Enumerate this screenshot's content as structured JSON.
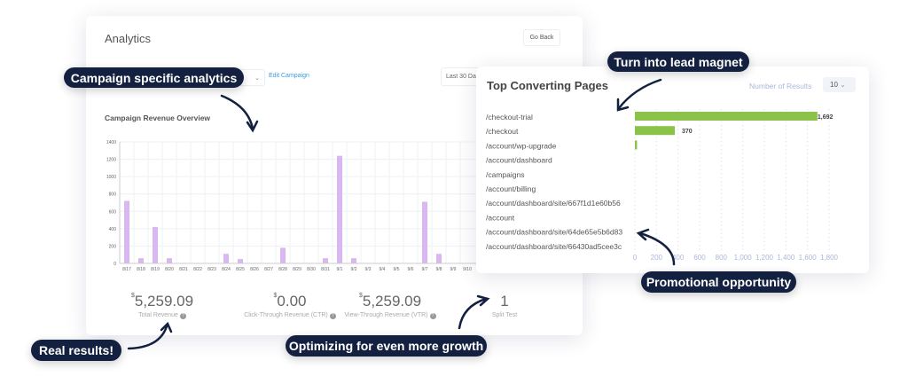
{
  "left_panel": {
    "title": "Analytics",
    "go_back": "Go Back",
    "edit_campaign": "Edit Campaign",
    "date_range": "Last 30 Da",
    "chart_title": "Campaign Revenue Overview",
    "stats": [
      {
        "currency": "$",
        "value": "5,259.09",
        "label": "Total Revenue",
        "help": true
      },
      {
        "currency": "$",
        "value": "0.00",
        "label": "Click-Through Revenue (CTR)",
        "help": true
      },
      {
        "currency": "$",
        "value": "5,259.09",
        "label": "View-Through Revenue (VTR)",
        "help": true
      },
      {
        "currency": "",
        "value": "1",
        "label": "Split Test",
        "help": false
      }
    ]
  },
  "right_panel": {
    "title": "Top Converting Pages",
    "results_label": "Number of Results",
    "results_value": "10"
  },
  "callouts": {
    "campaign": "Campaign specific analytics",
    "lead": "Turn into lead magnet",
    "promo": "Promotional opportunity",
    "results": "Real results!",
    "optimizing": "Optimizing for even more growth"
  },
  "colors": {
    "bar_revenue": "#d9b8f2",
    "bar_pages": "#8bc34a",
    "callout": "#13203f",
    "link": "#3a9be0"
  },
  "chart_data": [
    {
      "type": "bar",
      "title": "Campaign Revenue Overview",
      "categories": [
        "8/17",
        "8/18",
        "8/19",
        "8/20",
        "8/21",
        "8/22",
        "8/23",
        "8/24",
        "8/25",
        "8/26",
        "8/27",
        "8/28",
        "8/29",
        "8/30",
        "8/31",
        "9/1",
        "9/2",
        "9/3",
        "9/4",
        "9/5",
        "9/6",
        "9/7",
        "9/8",
        "9/9",
        "9/10"
      ],
      "values": [
        720,
        60,
        420,
        60,
        0,
        0,
        0,
        110,
        50,
        0,
        0,
        180,
        0,
        0,
        60,
        1240,
        60,
        0,
        0,
        0,
        0,
        710,
        110,
        0,
        0
      ],
      "ylim": [
        0,
        1400
      ],
      "yticks": [
        0,
        200,
        400,
        600,
        800,
        1000,
        1200,
        1400
      ],
      "grid": true
    },
    {
      "type": "bar",
      "orientation": "horizontal",
      "title": "Top Converting Pages",
      "categories": [
        "/checkout-trial",
        "/checkout",
        "/account/wp-upgrade",
        "/account/dashboard",
        "/campaigns",
        "/account/billing",
        "/account/dashboard/site/667f1d1e60b56",
        "/account",
        "/account/dashboard/site/64de65e5b6d83",
        "/account/dashboard/site/66430ad5cee3c"
      ],
      "values": [
        1692,
        370,
        20,
        0,
        0,
        0,
        0,
        0,
        0,
        0
      ],
      "data_labels": [
        "1,692",
        "370",
        "",
        "",
        "",
        "",
        "",
        "",
        "",
        ""
      ],
      "xlim": [
        0,
        1800
      ],
      "xticks": [
        "0",
        "200",
        "400",
        "600",
        "800",
        "1,000",
        "1,200",
        "1,400",
        "1,600",
        "1,800"
      ],
      "grid": true
    }
  ]
}
